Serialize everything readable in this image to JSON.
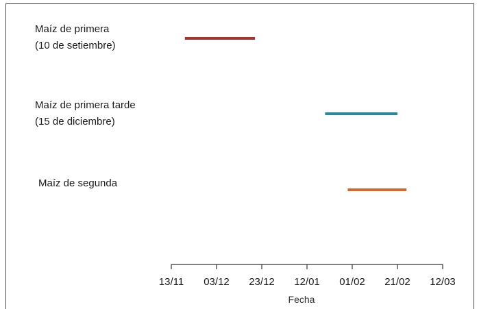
{
  "chart_data": {
    "type": "gantt",
    "xlabel": "Fecha",
    "x_ticks": [
      "13/11",
      "03/12",
      "23/12",
      "12/01",
      "01/02",
      "21/02",
      "12/03"
    ],
    "xlim": [
      "2023-11-13",
      "2024-03-12"
    ],
    "grid": false,
    "rows": [
      {
        "label_lines": [
          "Maíz de primera",
          "(10 de setiembre)"
        ],
        "start": "2023-11-19",
        "end": "2023-12-20",
        "color": "#a83232"
      },
      {
        "label_lines": [
          "Maíz de primera tarde",
          "(15 de diciembre)"
        ],
        "start": "2024-01-20",
        "end": "2024-02-21",
        "color": "#2a8a9a"
      },
      {
        "label_lines": [
          "Maíz de segunda"
        ],
        "start": "2024-01-30",
        "end": "2024-02-25",
        "color": "#d9662a"
      }
    ]
  }
}
